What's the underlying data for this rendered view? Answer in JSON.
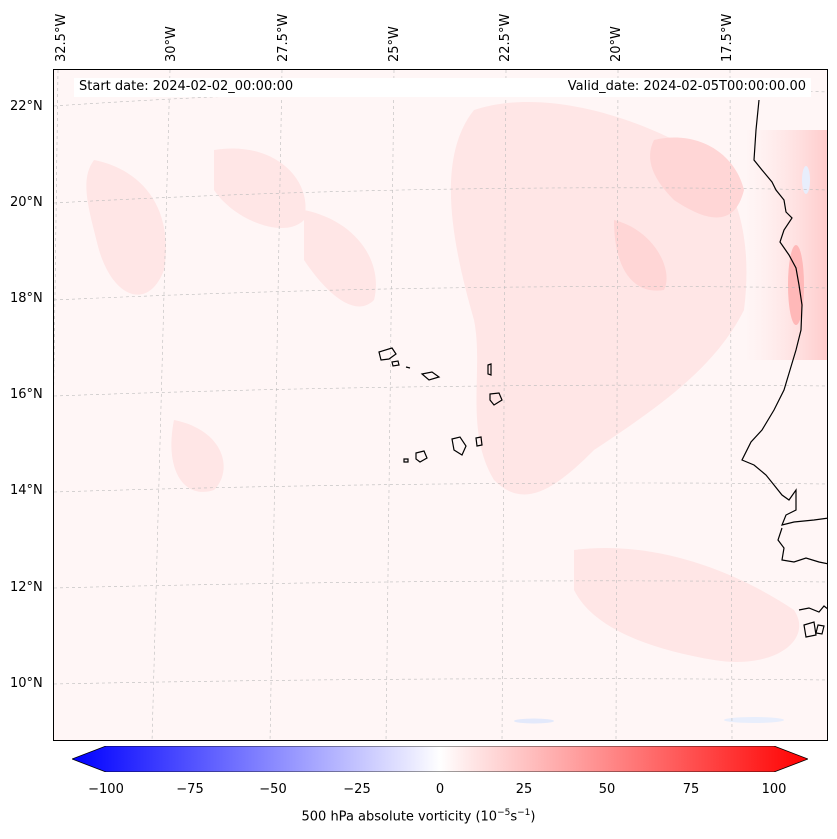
{
  "map": {
    "start_date": "Start date: 2024-02-02_00:00:00",
    "valid_date": "Valid_date: 2024-02-05T00:00:00.00",
    "lon_labels": [
      "32.5°W",
      "30°W",
      "27.5°W",
      "25°W",
      "22.5°W",
      "20°W",
      "17.5°W"
    ],
    "lat_labels": [
      "22°N",
      "20°N",
      "18°N",
      "16°N",
      "14°N",
      "12°N",
      "10°N"
    ],
    "islands": "Cape Verde",
    "coastline": "West Africa (Mauritania, Senegal, Gambia, Guinea-Bissau)"
  },
  "colorbar": {
    "ticks": [
      "−100",
      "−75",
      "−50",
      "−25",
      "0",
      "25",
      "50",
      "75",
      "100"
    ],
    "label": "500 hPa absolute vorticity (10",
    "label_exp1": "−5",
    "label_mid": "s",
    "label_exp2": "−1",
    "label_end": ")",
    "colors": {
      "negative": "#0000ff",
      "zero": "#ffffff",
      "positive": "#ff0000"
    }
  }
}
